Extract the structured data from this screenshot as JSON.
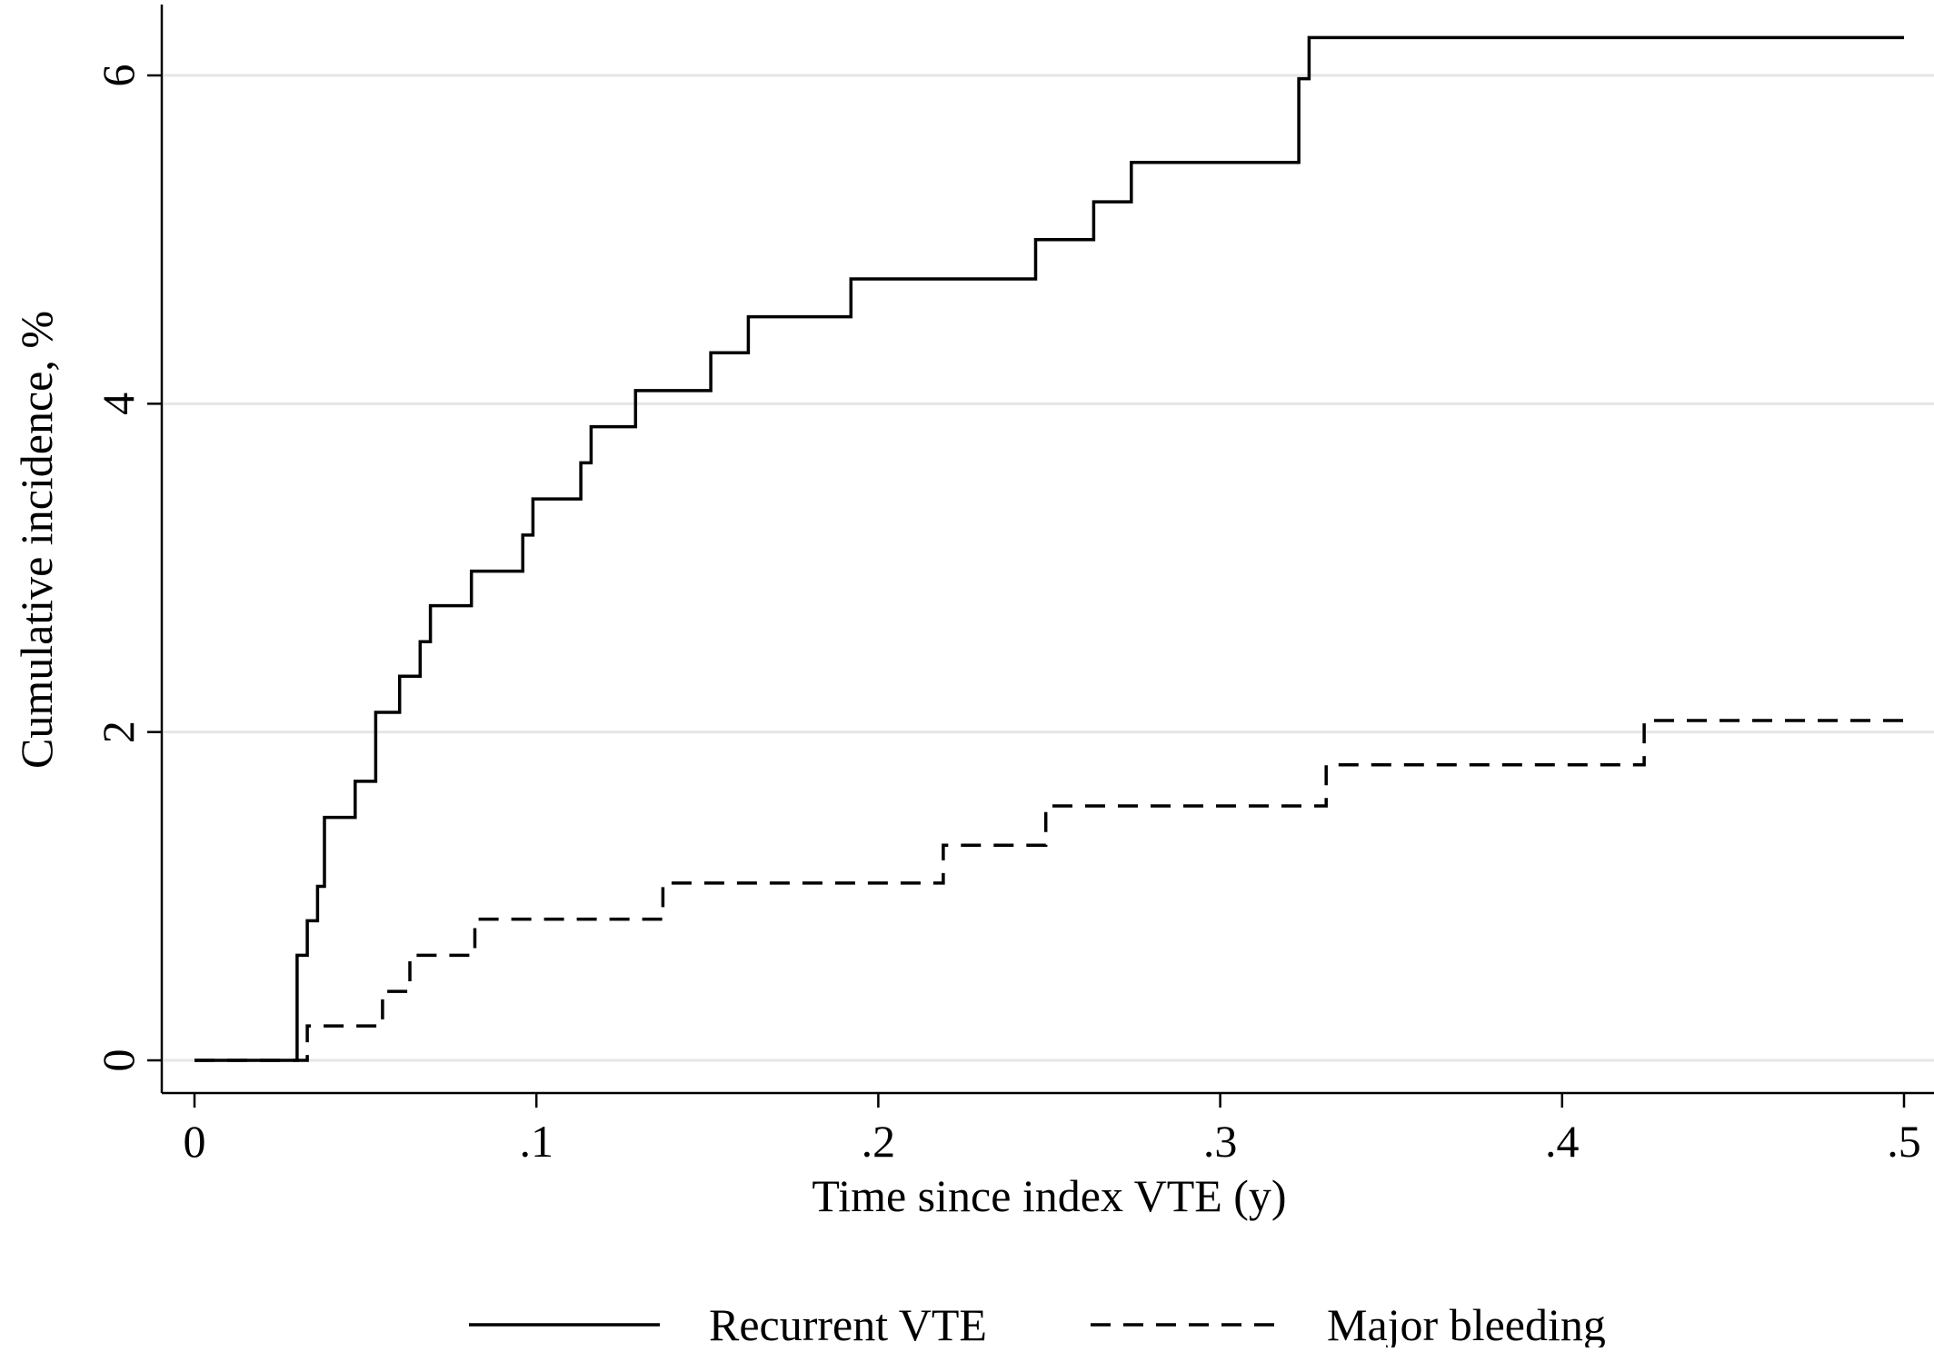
{
  "chart_data": {
    "type": "line",
    "title": "",
    "xlabel": "Time since index VTE (y)",
    "ylabel": "Cumulative incidence, %",
    "xlim": [
      0,
      0.5
    ],
    "ylim": [
      0,
      6.5
    ],
    "x_ticks": [
      {
        "value": 0,
        "label": "0"
      },
      {
        "value": 0.1,
        "label": ".1"
      },
      {
        "value": 0.2,
        "label": ".2"
      },
      {
        "value": 0.3,
        "label": ".3"
      },
      {
        "value": 0.4,
        "label": ".4"
      },
      {
        "value": 0.5,
        "label": ".5"
      }
    ],
    "y_ticks": [
      {
        "value": 0,
        "label": "0"
      },
      {
        "value": 2,
        "label": "2"
      },
      {
        "value": 4,
        "label": "4"
      },
      {
        "value": 6,
        "label": "6"
      }
    ],
    "grid": "horizontal",
    "legend_position": "bottom",
    "step": true,
    "series": [
      {
        "name": "Recurrent VTE",
        "style": "solid",
        "color": "#000000",
        "points": [
          [
            0,
            0
          ],
          [
            0.03,
            0.64
          ],
          [
            0.033,
            0.85
          ],
          [
            0.036,
            1.06
          ],
          [
            0.038,
            1.48
          ],
          [
            0.047,
            1.7
          ],
          [
            0.053,
            2.12
          ],
          [
            0.06,
            2.34
          ],
          [
            0.066,
            2.55
          ],
          [
            0.069,
            2.77
          ],
          [
            0.081,
            2.98
          ],
          [
            0.096,
            3.2
          ],
          [
            0.099,
            3.42
          ],
          [
            0.113,
            3.64
          ],
          [
            0.116,
            3.86
          ],
          [
            0.129,
            4.08
          ],
          [
            0.151,
            4.31
          ],
          [
            0.162,
            4.53
          ],
          [
            0.192,
            4.76
          ],
          [
            0.246,
            5.0
          ],
          [
            0.263,
            5.23
          ],
          [
            0.274,
            5.47
          ],
          [
            0.323,
            5.98
          ],
          [
            0.326,
            6.23
          ],
          [
            0.5,
            6.23
          ]
        ]
      },
      {
        "name": "Major bleeding",
        "style": "dashed",
        "color": "#000000",
        "points": [
          [
            0,
            0
          ],
          [
            0.033,
            0.21
          ],
          [
            0.055,
            0.42
          ],
          [
            0.063,
            0.64
          ],
          [
            0.082,
            0.86
          ],
          [
            0.137,
            1.08
          ],
          [
            0.219,
            1.31
          ],
          [
            0.249,
            1.55
          ],
          [
            0.331,
            1.8
          ],
          [
            0.424,
            2.07
          ],
          [
            0.5,
            2.07
          ]
        ]
      }
    ]
  }
}
